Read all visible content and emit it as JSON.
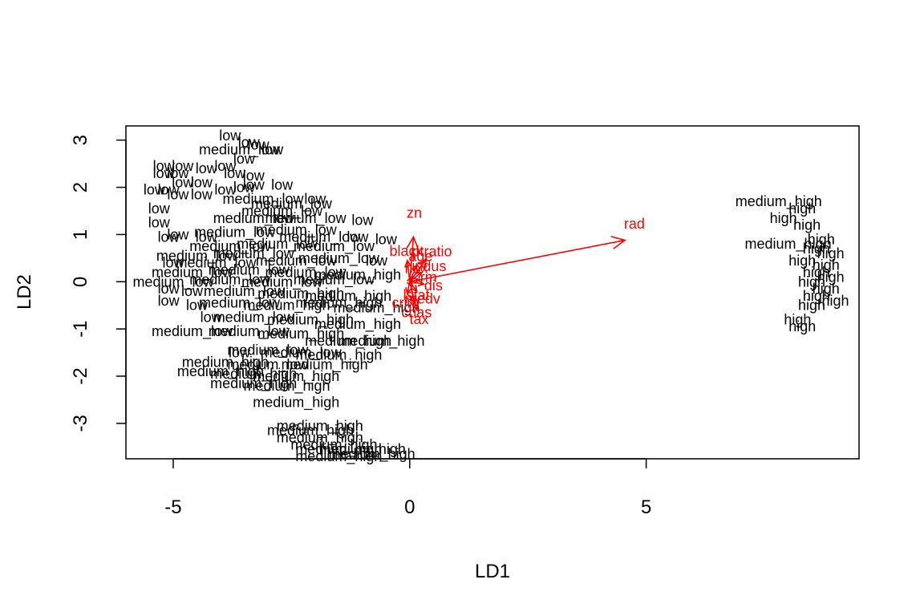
{
  "chart_data": {
    "type": "scatter",
    "title": "",
    "xlabel": "LD1",
    "ylabel": "LD2",
    "xlim": [
      -6.0,
      9.5
    ],
    "ylim": [
      -3.75,
      3.3
    ],
    "x_ticks": [
      -5,
      0,
      5
    ],
    "x_tick_labels": [
      "-5",
      "0",
      "5"
    ],
    "y_ticks": [
      -3,
      -2,
      -1,
      0,
      1,
      2,
      3
    ],
    "y_tick_labels": [
      "-3",
      "-2",
      "-1",
      "0",
      "1",
      "2",
      "3"
    ],
    "grid": false,
    "legend": "none",
    "point_color": "#000000",
    "arrow_color": "#ff0000",
    "groups": [
      "low",
      "medium_low",
      "medium_high",
      "high"
    ],
    "points": [
      {
        "label": "low",
        "x": -3.8,
        "y": 3.1
      },
      {
        "label": "low",
        "x": -3.4,
        "y": 2.95
      },
      {
        "label": "low",
        "x": -3.2,
        "y": 2.9
      },
      {
        "label": "medium_low",
        "x": -3.6,
        "y": 2.8
      },
      {
        "label": "low",
        "x": -2.9,
        "y": 2.8
      },
      {
        "label": "low",
        "x": -3.5,
        "y": 2.6
      },
      {
        "label": "low",
        "x": -5.2,
        "y": 2.45
      },
      {
        "label": "low",
        "x": -4.8,
        "y": 2.45
      },
      {
        "label": "low",
        "x": -4.3,
        "y": 2.4
      },
      {
        "label": "low",
        "x": -3.9,
        "y": 2.45
      },
      {
        "label": "low",
        "x": -5.2,
        "y": 2.3
      },
      {
        "label": "low",
        "x": -4.9,
        "y": 2.3
      },
      {
        "label": "low",
        "x": -3.7,
        "y": 2.3
      },
      {
        "label": "low",
        "x": -3.3,
        "y": 2.25
      },
      {
        "label": "low",
        "x": -4.8,
        "y": 2.1
      },
      {
        "label": "low",
        "x": -4.4,
        "y": 2.1
      },
      {
        "label": "low",
        "x": -3.3,
        "y": 2.05
      },
      {
        "label": "low",
        "x": -2.7,
        "y": 2.05
      },
      {
        "label": "low",
        "x": -5.4,
        "y": 1.95
      },
      {
        "label": "low",
        "x": -5.1,
        "y": 1.95
      },
      {
        "label": "low",
        "x": -4.9,
        "y": 1.85
      },
      {
        "label": "low",
        "x": -4.4,
        "y": 1.85
      },
      {
        "label": "low",
        "x": -3.9,
        "y": 1.95
      },
      {
        "label": "low",
        "x": -3.5,
        "y": 2.0
      },
      {
        "label": "medium_low",
        "x": -3.1,
        "y": 1.75
      },
      {
        "label": "low",
        "x": -2.0,
        "y": 1.75
      },
      {
        "label": "medium_low",
        "x": -2.5,
        "y": 1.65
      },
      {
        "label": "medium_low",
        "x": -2.7,
        "y": 1.5
      },
      {
        "label": "low",
        "x": -5.3,
        "y": 1.55
      },
      {
        "label": "medium_low",
        "x": -3.3,
        "y": 1.35
      },
      {
        "label": "medium_low",
        "x": -2.2,
        "y": 1.35
      },
      {
        "label": "low",
        "x": -1.0,
        "y": 1.3
      },
      {
        "label": "low",
        "x": -5.3,
        "y": 1.25
      },
      {
        "label": "low",
        "x": -4.9,
        "y": 1.0
      },
      {
        "label": "low",
        "x": -4.3,
        "y": 0.95
      },
      {
        "label": "medium_low",
        "x": -3.7,
        "y": 1.05
      },
      {
        "label": "medium_low",
        "x": -2.4,
        "y": 1.1
      },
      {
        "label": "medium_low",
        "x": -1.9,
        "y": 0.95
      },
      {
        "label": "low",
        "x": -1.1,
        "y": 0.95
      },
      {
        "label": "low",
        "x": -0.5,
        "y": 0.9
      },
      {
        "label": "low",
        "x": -5.1,
        "y": 0.95
      },
      {
        "label": "medium_low",
        "x": -3.8,
        "y": 0.75
      },
      {
        "label": "medium_low",
        "x": -2.8,
        "y": 0.8
      },
      {
        "label": "medium_low",
        "x": -1.6,
        "y": 0.75
      },
      {
        "label": "medium_low",
        "x": -4.5,
        "y": 0.55
      },
      {
        "label": "medium_low",
        "x": -3.3,
        "y": 0.6
      },
      {
        "label": "low",
        "x": -5.0,
        "y": 0.4
      },
      {
        "label": "medium_low",
        "x": -4.1,
        "y": 0.4
      },
      {
        "label": "medium_low",
        "x": -2.4,
        "y": 0.45
      },
      {
        "label": "medium_low",
        "x": -1.5,
        "y": 0.5
      },
      {
        "label": "low",
        "x": -0.7,
        "y": 0.45
      },
      {
        "label": "medium_low",
        "x": -4.6,
        "y": 0.2
      },
      {
        "label": "medium_low",
        "x": -3.4,
        "y": 0.25
      },
      {
        "label": "medium_low",
        "x": -2.2,
        "y": 0.2
      },
      {
        "label": "medium_high",
        "x": -1.1,
        "y": 0.15
      },
      {
        "label": "medium_low",
        "x": -5.0,
        "y": 0.0
      },
      {
        "label": "medium_low",
        "x": -3.8,
        "y": 0.05
      },
      {
        "label": "medium_low",
        "x": -2.7,
        "y": 0.0
      },
      {
        "label": "medium_low",
        "x": -1.6,
        "y": 0.05
      },
      {
        "label": "low",
        "x": -5.1,
        "y": -0.15
      },
      {
        "label": "low",
        "x": -4.6,
        "y": -0.2
      },
      {
        "label": "medium_low",
        "x": -3.5,
        "y": -0.2
      },
      {
        "label": "medium_high",
        "x": -2.3,
        "y": -0.25
      },
      {
        "label": "medium_high",
        "x": -1.3,
        "y": -0.3
      },
      {
        "label": "low",
        "x": -5.1,
        "y": -0.4
      },
      {
        "label": "low",
        "x": -4.5,
        "y": -0.5
      },
      {
        "label": "medium_low",
        "x": -3.6,
        "y": -0.45
      },
      {
        "label": "medium_high",
        "x": -2.6,
        "y": -0.5
      },
      {
        "label": "medium_high",
        "x": -1.5,
        "y": -0.45
      },
      {
        "label": "medium_high",
        "x": -0.7,
        "y": -0.55
      },
      {
        "label": "low",
        "x": -4.2,
        "y": -0.75
      },
      {
        "label": "medium_low",
        "x": -3.3,
        "y": -0.75
      },
      {
        "label": "medium_high",
        "x": -2.1,
        "y": -0.8
      },
      {
        "label": "medium_high",
        "x": -1.1,
        "y": -0.9
      },
      {
        "label": "medium_low",
        "x": -4.6,
        "y": -1.05
      },
      {
        "label": "medium_low",
        "x": -3.4,
        "y": -1.05
      },
      {
        "label": "medium_high",
        "x": -2.3,
        "y": -1.1
      },
      {
        "label": "medium_high",
        "x": -1.3,
        "y": -1.25
      },
      {
        "label": "medium_high",
        "x": -0.6,
        "y": -1.25
      },
      {
        "label": "low",
        "x": -3.6,
        "y": -1.5
      },
      {
        "label": "medium_low",
        "x": -3.0,
        "y": -1.45
      },
      {
        "label": "medium_low",
        "x": -2.3,
        "y": -1.5
      },
      {
        "label": "medium_high",
        "x": -1.5,
        "y": -1.55
      },
      {
        "label": "medium_high",
        "x": -3.9,
        "y": -1.7
      },
      {
        "label": "medium_low",
        "x": -3.0,
        "y": -1.75
      },
      {
        "label": "medium_high",
        "x": -1.8,
        "y": -1.75
      },
      {
        "label": "medium_high",
        "x": -4.0,
        "y": -1.9
      },
      {
        "label": "medium_high",
        "x": -3.3,
        "y": -1.95
      },
      {
        "label": "medium_high",
        "x": -2.4,
        "y": -2.0
      },
      {
        "label": "medium_high",
        "x": -3.3,
        "y": -2.15
      },
      {
        "label": "medium_high",
        "x": -2.6,
        "y": -2.2
      },
      {
        "label": "medium_high",
        "x": -2.4,
        "y": -2.55
      },
      {
        "label": "medium_high",
        "x": -1.9,
        "y": -3.05
      },
      {
        "label": "medium_high",
        "x": -2.1,
        "y": -3.15
      },
      {
        "label": "medium_high",
        "x": -1.9,
        "y": -3.3
      },
      {
        "label": "medium_high",
        "x": -1.6,
        "y": -3.45
      },
      {
        "label": "medium_high",
        "x": -1.5,
        "y": -3.55
      },
      {
        "label": "medium_high",
        "x": -1.0,
        "y": -3.55
      },
      {
        "label": "medium_high",
        "x": -1.5,
        "y": -3.7
      },
      {
        "label": "medium_high",
        "x": -0.8,
        "y": -3.65
      },
      {
        "label": "medium_high",
        "x": 7.8,
        "y": 1.7
      },
      {
        "label": "high",
        "x": 8.3,
        "y": 1.55
      },
      {
        "label": "high",
        "x": 7.9,
        "y": 1.35
      },
      {
        "label": "high",
        "x": 8.4,
        "y": 1.2
      },
      {
        "label": "medium_high",
        "x": 8.0,
        "y": 0.8
      },
      {
        "label": "high",
        "x": 8.7,
        "y": 0.9
      },
      {
        "label": "high",
        "x": 8.6,
        "y": 0.7
      },
      {
        "label": "high",
        "x": 8.9,
        "y": 0.6
      },
      {
        "label": "high",
        "x": 8.3,
        "y": 0.45
      },
      {
        "label": "high",
        "x": 8.8,
        "y": 0.35
      },
      {
        "label": "high",
        "x": 8.6,
        "y": 0.2
      },
      {
        "label": "high",
        "x": 8.9,
        "y": 0.1
      },
      {
        "label": "high",
        "x": 8.5,
        "y": 0.0
      },
      {
        "label": "high",
        "x": 8.8,
        "y": -0.15
      },
      {
        "label": "high",
        "x": 8.6,
        "y": -0.3
      },
      {
        "label": "high",
        "x": 9.0,
        "y": -0.4
      },
      {
        "label": "high",
        "x": 8.5,
        "y": -0.5
      },
      {
        "label": "high",
        "x": 8.2,
        "y": -0.8
      },
      {
        "label": "high",
        "x": 8.3,
        "y": -0.95
      }
    ],
    "arrows": [
      {
        "label": "zn",
        "x": 0.08,
        "y": 0.95
      },
      {
        "label": "rad",
        "x": 4.55,
        "y": 0.88
      },
      {
        "label": "black",
        "x": -0.05,
        "y": 0.45
      },
      {
        "label": "ptratio",
        "x": 0.35,
        "y": 0.48
      },
      {
        "label": "age",
        "x": 0.15,
        "y": 0.35
      },
      {
        "label": "indus",
        "x": 0.25,
        "y": 0.2
      },
      {
        "label": "nox",
        "x": 0.05,
        "y": 0.1
      },
      {
        "label": "rm",
        "x": 0.2,
        "y": 0.05
      },
      {
        "label": "dis",
        "x": 0.3,
        "y": -0.05
      },
      {
        "label": "lstat",
        "x": 0.05,
        "y": -0.1
      },
      {
        "label": "medv",
        "x": 0.15,
        "y": -0.2
      },
      {
        "label": "crim",
        "x": -0.05,
        "y": -0.25
      },
      {
        "label": "chas",
        "x": 0.1,
        "y": -0.45
      },
      {
        "label": "tax",
        "x": 0.15,
        "y": -0.6
      }
    ]
  }
}
